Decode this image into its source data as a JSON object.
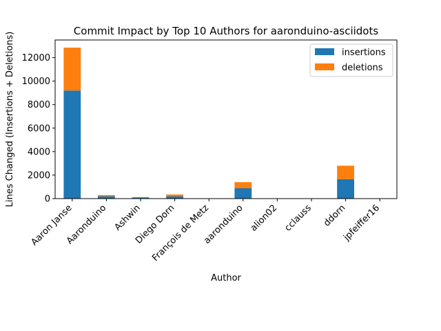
{
  "chart_data": {
    "type": "bar",
    "stacked": true,
    "title": "Commit Impact by Top 10 Authors for aaronduino-asciidots",
    "xlabel": "Author",
    "ylabel": "Lines Changed (Insertions + Deletions)",
    "categories": [
      "Aaron Janse",
      "Aaronduino",
      "Ashwin",
      "Diego Dorn",
      "François de Metz",
      "aaronduino",
      "alion02",
      "cclauss",
      "ddorn",
      "jpfeiffer16"
    ],
    "series": [
      {
        "name": "insertions",
        "color": "#1f77b4",
        "values": [
          9200,
          200,
          100,
          200,
          10,
          880,
          4,
          4,
          1650,
          4
        ]
      },
      {
        "name": "deletions",
        "color": "#ff7f0e",
        "values": [
          3650,
          100,
          30,
          150,
          5,
          520,
          2,
          2,
          1150,
          2
        ]
      }
    ],
    "ylim": [
      0,
      13500
    ],
    "yticks": [
      0,
      2000,
      4000,
      6000,
      8000,
      10000,
      12000
    ],
    "grid": false,
    "legend_position": "top-right"
  }
}
